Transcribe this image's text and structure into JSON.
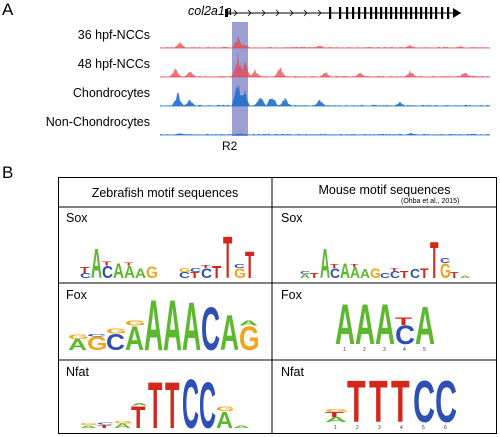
{
  "panel_a": {
    "letter": "A",
    "gene_name": "col2a1a",
    "tracks": [
      {
        "label": "36 hpf-NCCs",
        "color": "#e8464e"
      },
      {
        "label": "48 hpf-NCCs",
        "color": "#e8464e"
      },
      {
        "label": "Chondrocytes",
        "color": "#1f6fc9"
      },
      {
        "label": "Non-Chondrocytes",
        "color": "#1f6fc9"
      }
    ],
    "region_label": "R2",
    "highlight_color": "#7b7fc4"
  },
  "panel_b": {
    "letter": "B",
    "zebrafish_header": "Zebrafish motif sequences",
    "mouse_header": "Mouse motif sequences",
    "mouse_citation": "(Ohba et al., 2015)",
    "rows": [
      {
        "zebrafish_name": "Sox",
        "mouse_name": "Sox"
      },
      {
        "zebrafish_name": "Fox",
        "mouse_name": "Fox"
      },
      {
        "zebrafish_name": "Nfat",
        "mouse_name": "Nfat"
      }
    ],
    "base_colors": {
      "A": "#5cb82f",
      "C": "#2e4fb3",
      "G": "#f2a51a",
      "T": "#d5261b"
    }
  }
}
